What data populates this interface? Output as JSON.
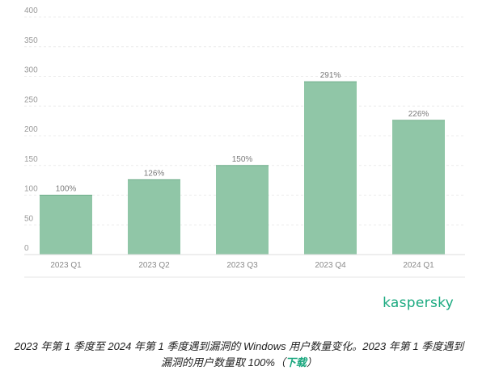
{
  "chart_data": {
    "type": "bar",
    "categories": [
      "2023 Q1",
      "2023 Q2",
      "2023 Q3",
      "2023 Q4",
      "2024 Q1"
    ],
    "values": [
      100,
      126,
      150,
      291,
      226
    ],
    "data_labels": [
      "100%",
      "126%",
      "150%",
      "291%",
      "226%"
    ],
    "yticks": [
      0,
      50,
      100,
      150,
      200,
      250,
      300,
      350,
      400
    ],
    "ylim": [
      0,
      400
    ],
    "grid": true,
    "bar_color": "#90c6a7"
  },
  "brand": "kaspersky",
  "caption": {
    "line1": "2023 年第 1 季度至 2024 年第 1 季度遇到漏洞的 Windows 用户数量变化。2023 年第 1 季度遇到",
    "line2_prefix": "漏洞的用户数量取 100%（",
    "link": "下载",
    "line2_suffix": "）"
  }
}
